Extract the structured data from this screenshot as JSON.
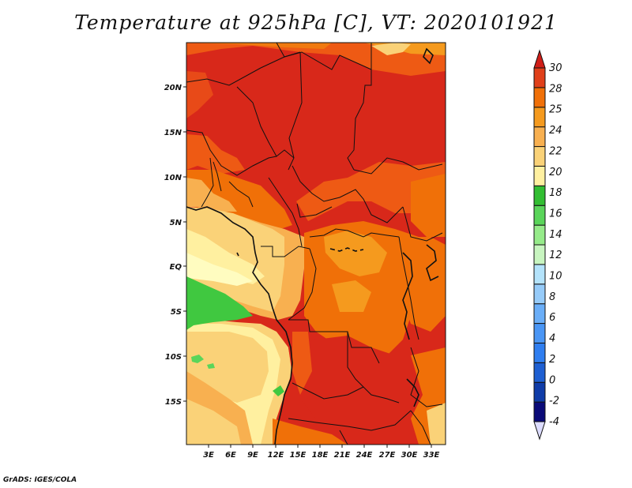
{
  "title": "Temperature at 925hPa [C], VT: 2020101921",
  "credit": "GrADS: IGES/COLA",
  "map": {
    "lat_labels": [
      "20N",
      "15N",
      "10N",
      "5N",
      "EQ",
      "5S",
      "10S",
      "15S"
    ],
    "lon_labels": [
      "3E",
      "6E",
      "9E",
      "12E",
      "15E",
      "18E",
      "21E",
      "24E",
      "27E",
      "30E",
      "33E"
    ]
  },
  "colorbar": {
    "levels": [
      "-4",
      "-2",
      "0",
      "2",
      "4",
      "6",
      "8",
      "10",
      "12",
      "14",
      "16",
      "18",
      "20",
      "22",
      "24",
      "25",
      "28",
      "30"
    ],
    "colors": [
      "#dcdcff",
      "#0a0a78",
      "#0f3ca8",
      "#1e5fd2",
      "#2f7ef0",
      "#4a96f5",
      "#6aaef8",
      "#96cbf9",
      "#b4e3fb",
      "#c8f5c0",
      "#96eb8a",
      "#5ad55a",
      "#32be32",
      "#fff0a0",
      "#fad278",
      "#f8b050",
      "#f59a1e",
      "#f07008",
      "#e0401a",
      "#d01e18"
    ]
  }
}
